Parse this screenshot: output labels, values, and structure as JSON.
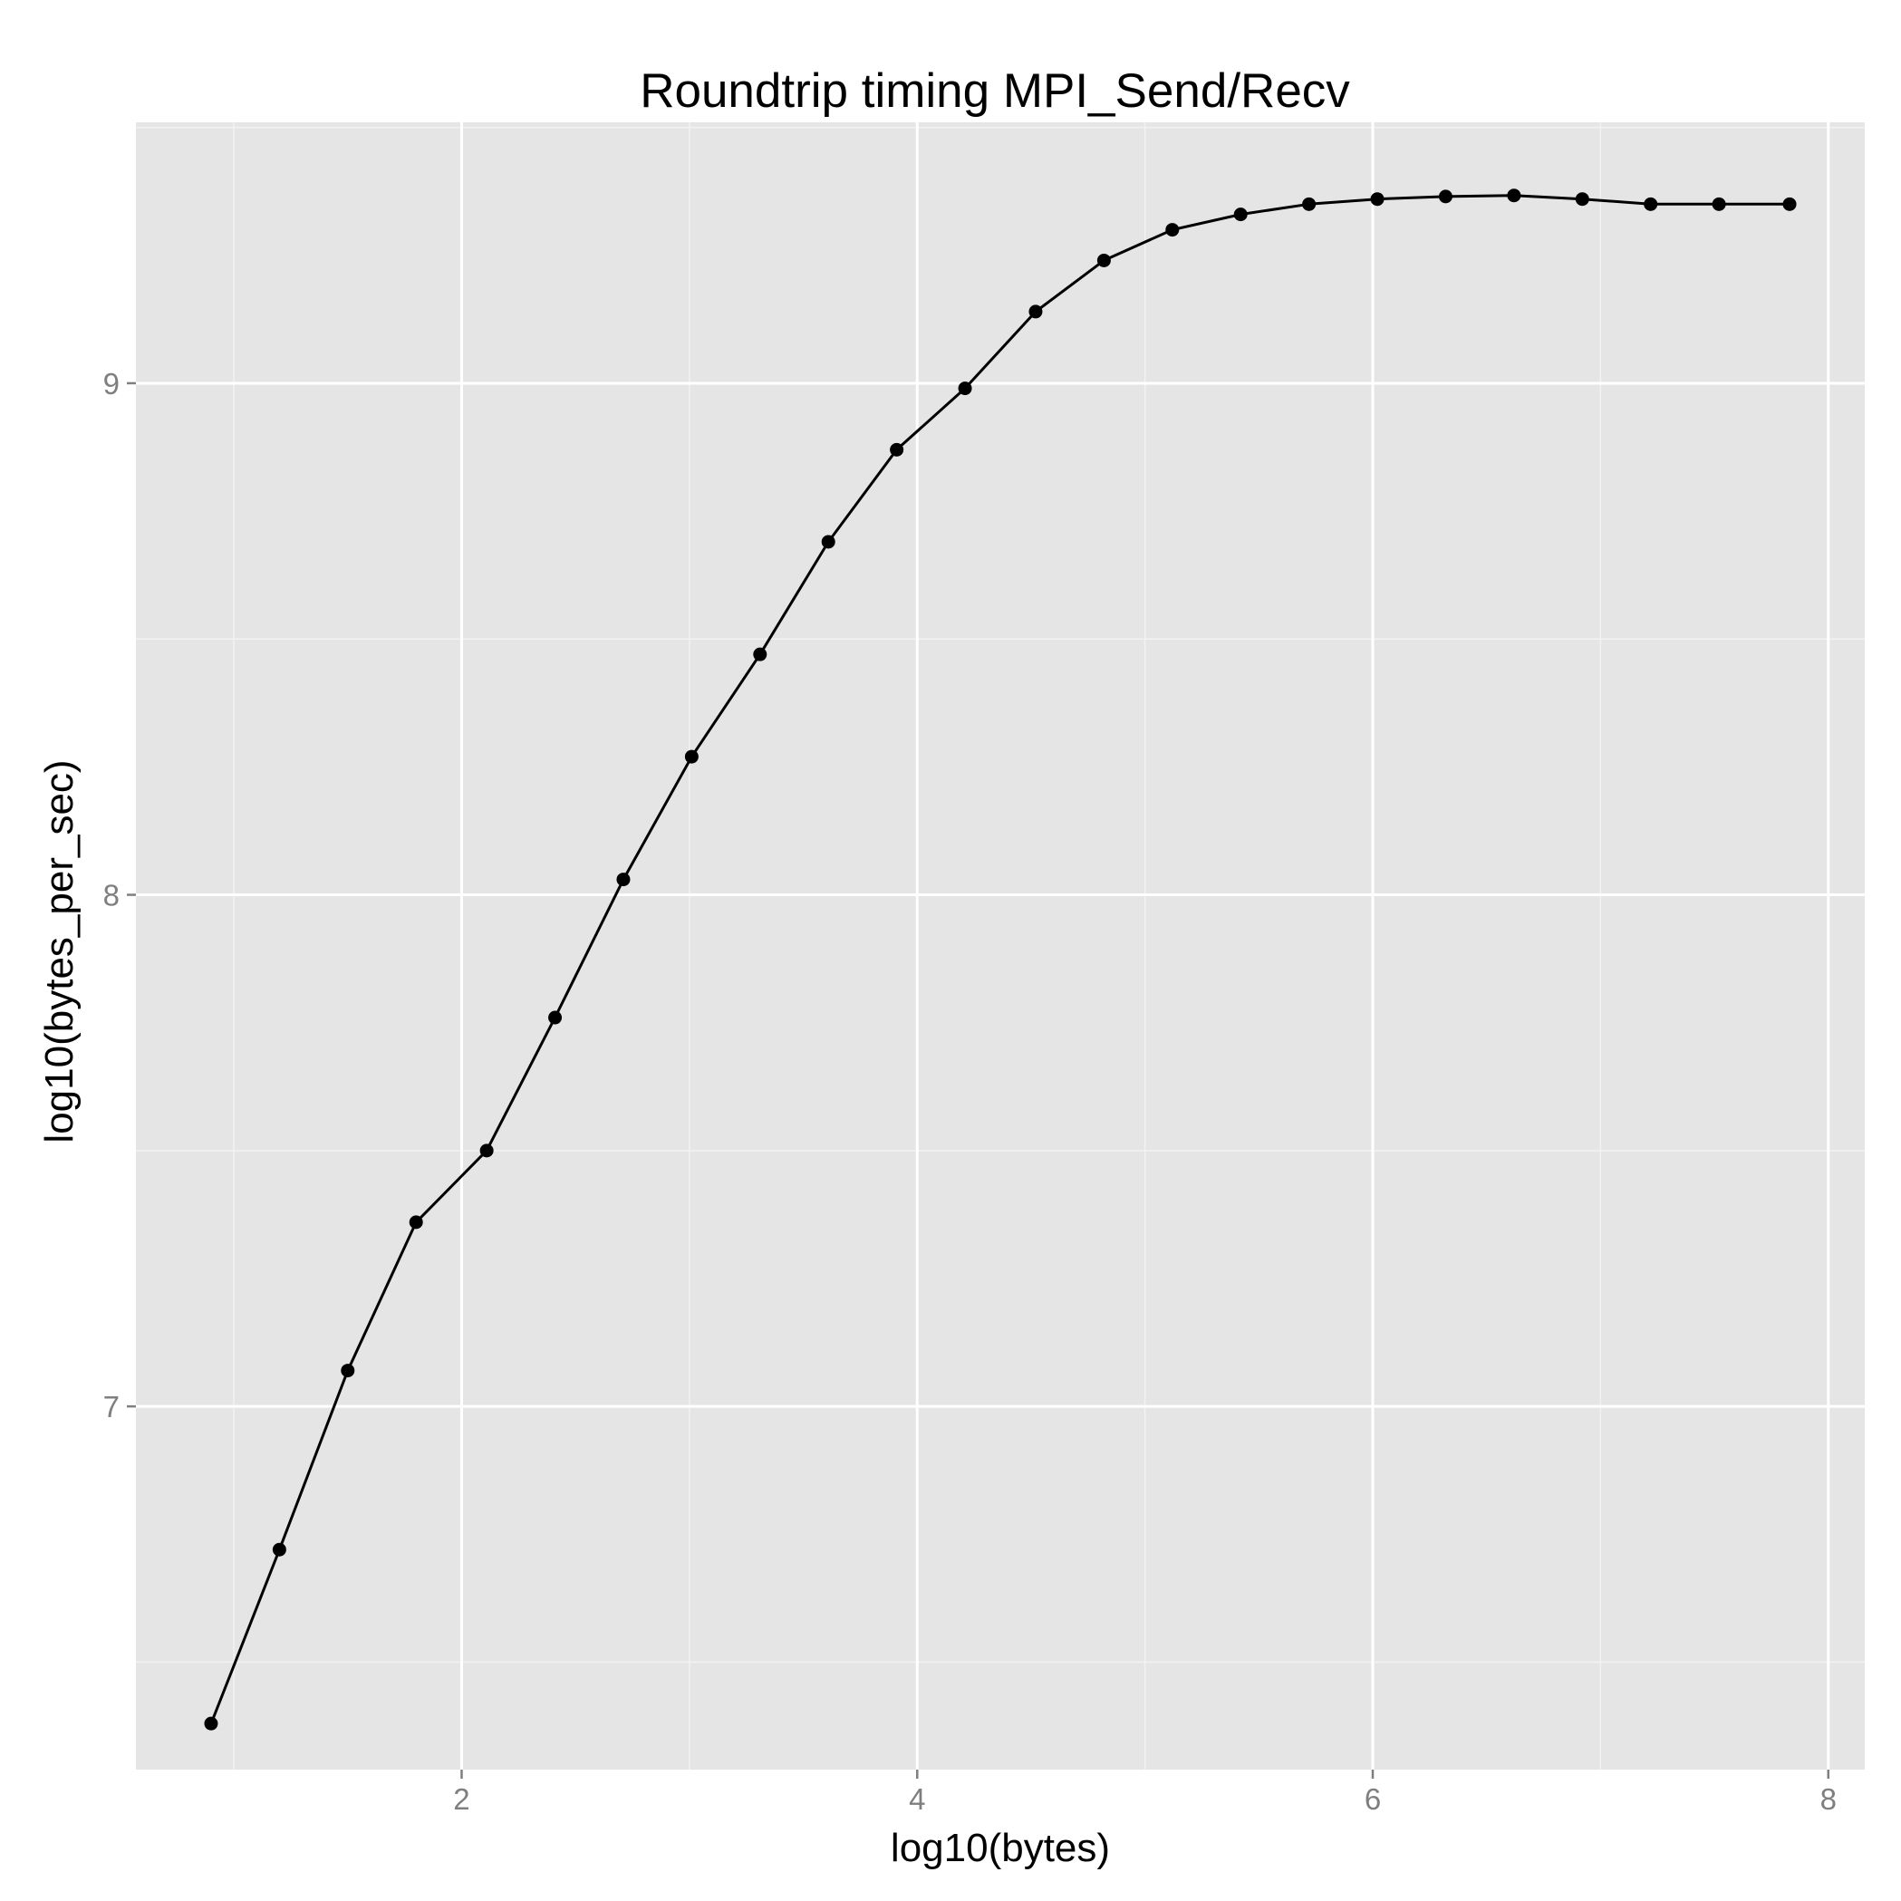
{
  "chart_data": {
    "type": "line",
    "title": "Roundtrip timing MPI_Send/Recv",
    "xlabel": "log10(bytes)",
    "ylabel": "log10(bytes_per_sec)",
    "xlim": [
      0.57,
      8.16
    ],
    "ylim": [
      6.29,
      9.51
    ],
    "x_ticks": [
      2,
      4,
      6,
      8
    ],
    "x_tick_labels": [
      "2",
      "4",
      "6",
      "8"
    ],
    "y_ticks": [
      7,
      8,
      9
    ],
    "y_tick_labels": [
      "7",
      "8",
      "9"
    ],
    "grid": true,
    "markers": true,
    "series": [
      {
        "x": [
          0.9,
          1.2,
          1.5,
          1.8,
          2.11,
          2.41,
          2.71,
          3.01,
          3.31,
          3.61,
          3.91,
          4.21,
          4.52,
          4.82,
          5.12,
          5.42,
          5.72,
          6.02,
          6.32,
          6.62,
          6.92,
          7.22,
          7.52,
          7.83
        ],
        "y": [
          6.38,
          6.72,
          7.07,
          7.36,
          7.5,
          7.76,
          8.03,
          8.27,
          8.47,
          8.69,
          8.87,
          8.99,
          9.14,
          9.24,
          9.3,
          9.33,
          9.35,
          9.36,
          9.365,
          9.367,
          9.36,
          9.35,
          9.35,
          9.35
        ]
      }
    ],
    "colors": {
      "panel": "#e5e5e5",
      "grid_major": "#ffffff",
      "grid_minor": "#f2f2f2",
      "line": "#000000",
      "tick_label": "#7f7f7f"
    }
  }
}
